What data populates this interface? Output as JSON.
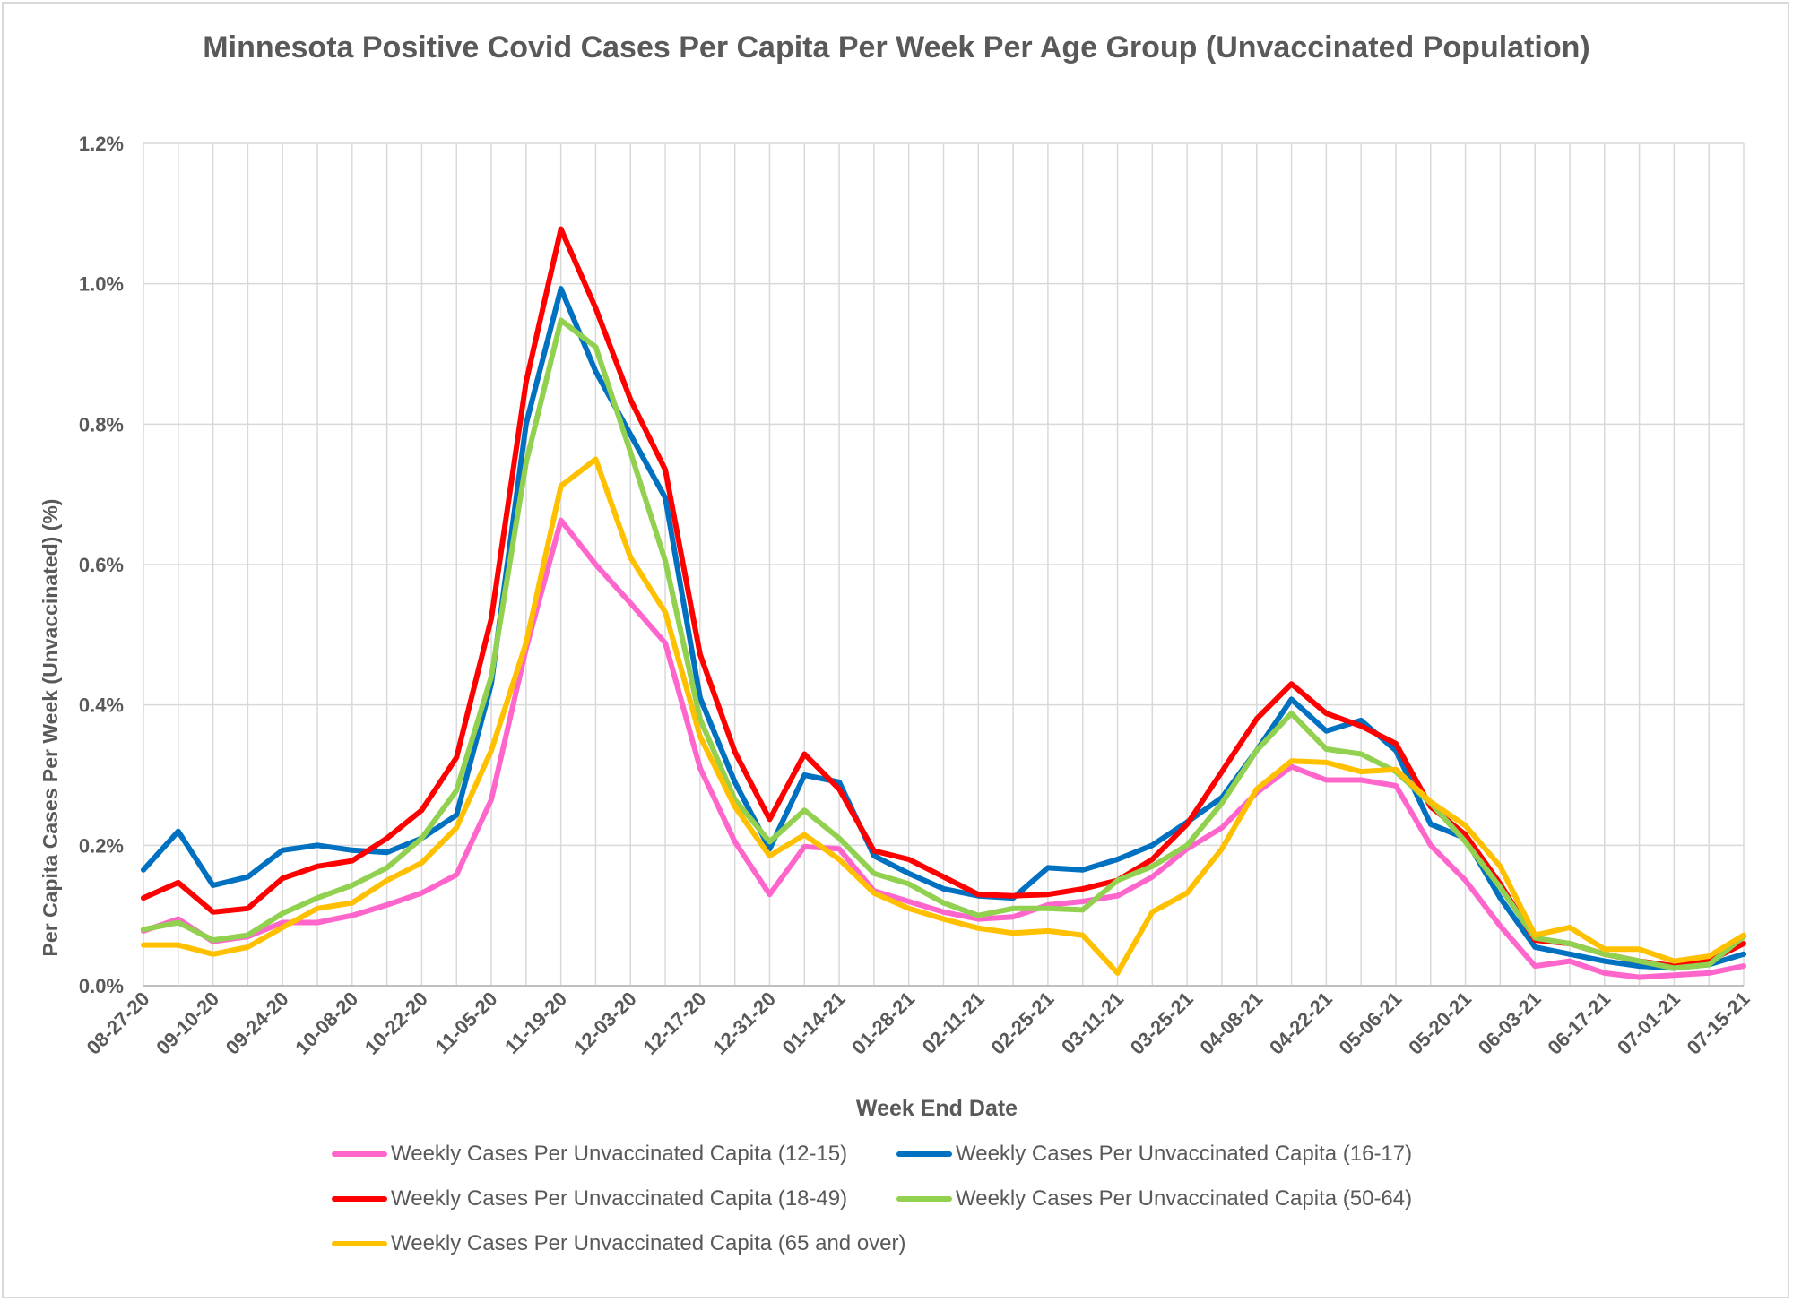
{
  "chart_data": {
    "type": "line",
    "title": "Minnesota Positive Covid Cases Per Capita Per Week Per Age Group (Unvaccinated Population)",
    "xlabel": "Week End Date",
    "ylabel": "Per Capita  Cases Per Week (Unvaccinated) (%)",
    "ylim": [
      0,
      1.2
    ],
    "yticks": [
      "0.0%",
      "0.2%",
      "0.4%",
      "0.6%",
      "0.8%",
      "1.0%",
      "1.2%"
    ],
    "grid": true,
    "legend_position": "bottom",
    "x_tick_labels": [
      "08-27-20",
      "09-10-20",
      "09-24-20",
      "10-08-20",
      "10-22-20",
      "11-05-20",
      "11-19-20",
      "12-03-20",
      "12-17-20",
      "12-31-20",
      "01-14-21",
      "01-28-21",
      "02-11-21",
      "02-25-21",
      "03-11-21",
      "03-25-21",
      "04-08-21",
      "04-22-21",
      "05-06-21",
      "05-20-21",
      "06-03-21",
      "06-17-21",
      "07-01-21",
      "07-15-21"
    ],
    "x": [
      "08-27-20",
      "09-03-20",
      "09-10-20",
      "09-17-20",
      "09-24-20",
      "10-01-20",
      "10-08-20",
      "10-15-20",
      "10-22-20",
      "10-29-20",
      "11-05-20",
      "11-12-20",
      "11-19-20",
      "11-26-20",
      "12-03-20",
      "12-10-20",
      "12-17-20",
      "12-24-20",
      "12-31-20",
      "01-07-21",
      "01-14-21",
      "01-21-21",
      "01-28-21",
      "02-04-21",
      "02-11-21",
      "02-18-21",
      "02-25-21",
      "03-04-21",
      "03-11-21",
      "03-18-21",
      "03-25-21",
      "04-01-21",
      "04-08-21",
      "04-15-21",
      "04-22-21",
      "04-29-21",
      "05-06-21",
      "05-13-21",
      "05-20-21",
      "05-27-21",
      "06-03-21",
      "06-10-21",
      "06-17-21",
      "06-24-21",
      "07-01-21",
      "07-08-21",
      "07-15-21"
    ],
    "series": [
      {
        "name": "Weekly Cases Per Unvaccinated Capita (12-15)",
        "color": "#ff66cc",
        "values": [
          0.078,
          0.095,
          0.063,
          0.07,
          0.09,
          0.09,
          0.1,
          0.115,
          0.132,
          0.158,
          0.265,
          0.48,
          0.663,
          0.6,
          0.545,
          0.488,
          0.31,
          0.205,
          0.13,
          0.198,
          0.195,
          0.135,
          0.12,
          0.105,
          0.095,
          0.098,
          0.115,
          0.12,
          0.128,
          0.155,
          0.195,
          0.225,
          0.275,
          0.312,
          0.293,
          0.293,
          0.285,
          0.2,
          0.15,
          0.085,
          0.028,
          0.035,
          0.018,
          0.012,
          0.015,
          0.018,
          0.028
        ]
      },
      {
        "name": "Weekly Cases Per Unvaccinated Capita (16-17)",
        "color": "#0070c0",
        "values": [
          0.165,
          0.22,
          0.143,
          0.155,
          0.193,
          0.2,
          0.193,
          0.19,
          0.21,
          0.243,
          0.43,
          0.8,
          0.993,
          0.875,
          0.785,
          0.695,
          0.41,
          0.29,
          0.195,
          0.3,
          0.29,
          0.185,
          0.16,
          0.138,
          0.128,
          0.125,
          0.168,
          0.165,
          0.18,
          0.2,
          0.233,
          0.268,
          0.335,
          0.408,
          0.363,
          0.378,
          0.335,
          0.23,
          0.21,
          0.125,
          0.055,
          0.045,
          0.035,
          0.028,
          0.025,
          0.03,
          0.045
        ]
      },
      {
        "name": "Weekly Cases Per Unvaccinated Capita (18-49)",
        "color": "#ff0000",
        "values": [
          0.125,
          0.147,
          0.105,
          0.11,
          0.153,
          0.17,
          0.178,
          0.21,
          0.25,
          0.325,
          0.523,
          0.86,
          1.078,
          0.965,
          0.835,
          0.735,
          0.472,
          0.333,
          0.237,
          0.33,
          0.28,
          0.192,
          0.18,
          0.155,
          0.13,
          0.128,
          0.13,
          0.138,
          0.15,
          0.18,
          0.23,
          0.305,
          0.38,
          0.43,
          0.388,
          0.37,
          0.345,
          0.255,
          0.215,
          0.145,
          0.065,
          0.06,
          0.045,
          0.035,
          0.028,
          0.035,
          0.06
        ]
      },
      {
        "name": "Weekly Cases Per Unvaccinated Capita (50-64)",
        "color": "#92d050",
        "values": [
          0.08,
          0.09,
          0.065,
          0.072,
          0.103,
          0.125,
          0.143,
          0.168,
          0.21,
          0.278,
          0.44,
          0.745,
          0.948,
          0.91,
          0.76,
          0.605,
          0.38,
          0.265,
          0.205,
          0.25,
          0.21,
          0.16,
          0.145,
          0.118,
          0.1,
          0.11,
          0.11,
          0.108,
          0.15,
          0.17,
          0.2,
          0.26,
          0.335,
          0.388,
          0.337,
          0.33,
          0.305,
          0.26,
          0.205,
          0.14,
          0.068,
          0.06,
          0.045,
          0.035,
          0.025,
          0.03,
          0.07
        ]
      },
      {
        "name": "Weekly Cases Per Unvaccinated Capita (65 and over)",
        "color": "#ffc000",
        "values": [
          0.058,
          0.058,
          0.045,
          0.055,
          0.083,
          0.11,
          0.118,
          0.15,
          0.175,
          0.225,
          0.335,
          0.488,
          0.712,
          0.75,
          0.61,
          0.532,
          0.355,
          0.255,
          0.185,
          0.215,
          0.18,
          0.132,
          0.11,
          0.095,
          0.082,
          0.075,
          0.078,
          0.072,
          0.018,
          0.105,
          0.132,
          0.195,
          0.28,
          0.32,
          0.318,
          0.305,
          0.308,
          0.262,
          0.228,
          0.17,
          0.072,
          0.083,
          0.052,
          0.052,
          0.035,
          0.042,
          0.072
        ]
      }
    ]
  }
}
